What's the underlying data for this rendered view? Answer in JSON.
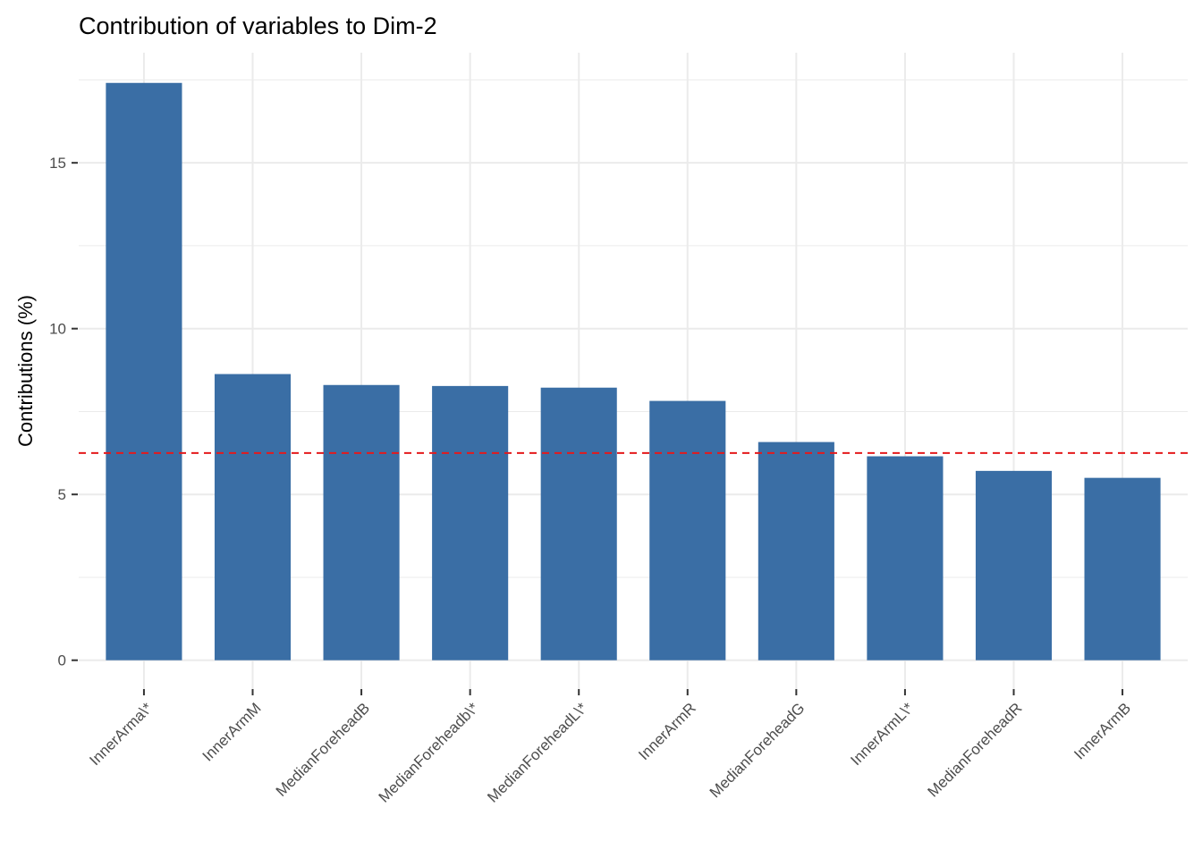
{
  "chart_data": {
    "type": "bar",
    "title": "Contribution of variables to Dim-2",
    "y_label": "Contributions (%)",
    "categories": [
      "InnerArma\\*",
      "InnerArmM",
      "MedianForeheadB",
      "MedianForeheadb\\*",
      "MedianForeheadL\\*",
      "InnerArmR",
      "MedianForeheadG",
      "InnerArmL\\*",
      "MedianForeheadR",
      "InnerArmB"
    ],
    "values": [
      17.41,
      8.63,
      8.3,
      8.27,
      8.22,
      7.82,
      6.58,
      6.15,
      5.71,
      5.5
    ],
    "color": "#3a6ea5",
    "ylim": [
      -0.87,
      18.32
    ],
    "yticks": [
      0,
      5,
      10,
      15
    ],
    "minor_yticks": [
      2.5,
      7.5,
      12.5,
      17.5
    ],
    "grid": true,
    "reference_line": {
      "value": 6.25,
      "color": "#e41a1c",
      "style": "dashed"
    }
  }
}
